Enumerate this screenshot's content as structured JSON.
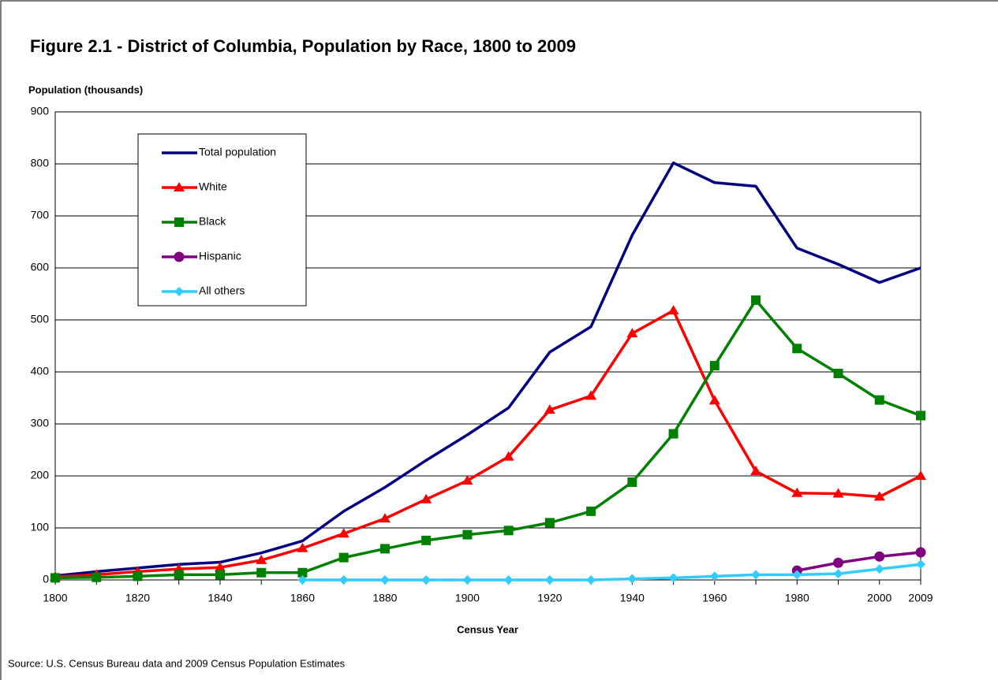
{
  "chart_data": {
    "type": "line",
    "title": "Figure 2.1 - District of Columbia, Population by Race, 1800 to 2009",
    "y_label": "Population (thousands)",
    "x_label": "Census Year",
    "source": "Source: U.S. Census Bureau data and 2009 Census Population Estimates",
    "categories": [
      "1800",
      null,
      "1820",
      null,
      "1840",
      null,
      "1860",
      null,
      "1880",
      null,
      "1900",
      null,
      "1920",
      null,
      "1940",
      null,
      "1960",
      null,
      "1980",
      null,
      "2000",
      "2009"
    ],
    "ylim": [
      0,
      900
    ],
    "yticks": [
      0,
      100,
      200,
      300,
      400,
      500,
      600,
      700,
      800,
      900
    ],
    "grid": true,
    "legend": "upper left",
    "series": [
      {
        "name": "Total population",
        "color": "#000080",
        "marker": "none",
        "values": [
          8,
          16,
          23,
          30,
          34,
          52,
          75,
          132,
          178,
          230,
          279,
          331,
          438,
          487,
          663,
          802,
          764,
          757,
          638,
          607,
          572,
          600
        ]
      },
      {
        "name": "White",
        "color": "#ff0000",
        "marker": "triangle",
        "values": [
          6,
          10,
          16,
          21,
          24,
          38,
          61,
          89,
          118,
          155,
          191,
          237,
          327,
          354,
          474,
          518,
          345,
          209,
          167,
          166,
          160,
          200
        ]
      },
      {
        "name": "Black",
        "color": "#008000",
        "marker": "square",
        "values": [
          4,
          5,
          7,
          10,
          10,
          14,
          14,
          43,
          60,
          76,
          87,
          95,
          110,
          132,
          188,
          281,
          412,
          538,
          445,
          397,
          346,
          316
        ]
      },
      {
        "name": "Hispanic",
        "color": "#800080",
        "marker": "circle",
        "values": [
          null,
          null,
          null,
          null,
          null,
          null,
          null,
          null,
          null,
          null,
          null,
          null,
          null,
          null,
          null,
          null,
          null,
          null,
          18,
          33,
          45,
          53
        ]
      },
      {
        "name": "All others",
        "color": "#33ccff",
        "marker": "diamond",
        "values": [
          null,
          null,
          null,
          null,
          null,
          null,
          0,
          0,
          0,
          0,
          0,
          0,
          0,
          0,
          2,
          4,
          7,
          10,
          10,
          12,
          21,
          30
        ]
      }
    ]
  }
}
